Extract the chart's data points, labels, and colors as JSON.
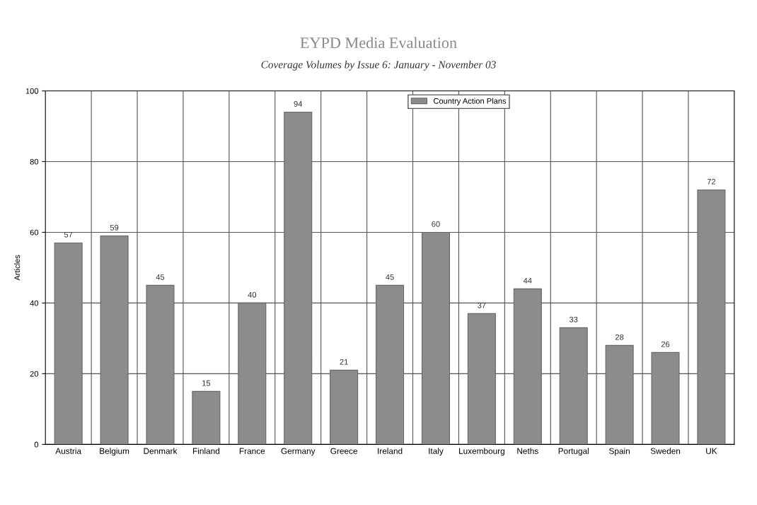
{
  "chart_data": {
    "type": "bar",
    "title": "EYPD Media Evaluation",
    "subtitle": "Coverage Volumes by Issue 6: January - November 03",
    "ylabel": "Articles",
    "categories": [
      "Austria",
      "Belgium",
      "Denmark",
      "Finland",
      "France",
      "Germany",
      "Greece",
      "Ireland",
      "Italy",
      "Luxembourg",
      "Neths",
      "Portugal",
      "Spain",
      "Sweden",
      "UK"
    ],
    "series": [
      {
        "name": "Country Action Plans",
        "color": "#8c8c8c",
        "values": [
          57,
          59,
          45,
          15,
          40,
          94,
          21,
          45,
          60,
          37,
          44,
          33,
          28,
          26,
          72
        ]
      }
    ],
    "ylim": [
      0,
      100
    ],
    "yticks": [
      0,
      20,
      40,
      60,
      80,
      100
    ],
    "grid": true,
    "legend": "top",
    "data_labels": true
  }
}
